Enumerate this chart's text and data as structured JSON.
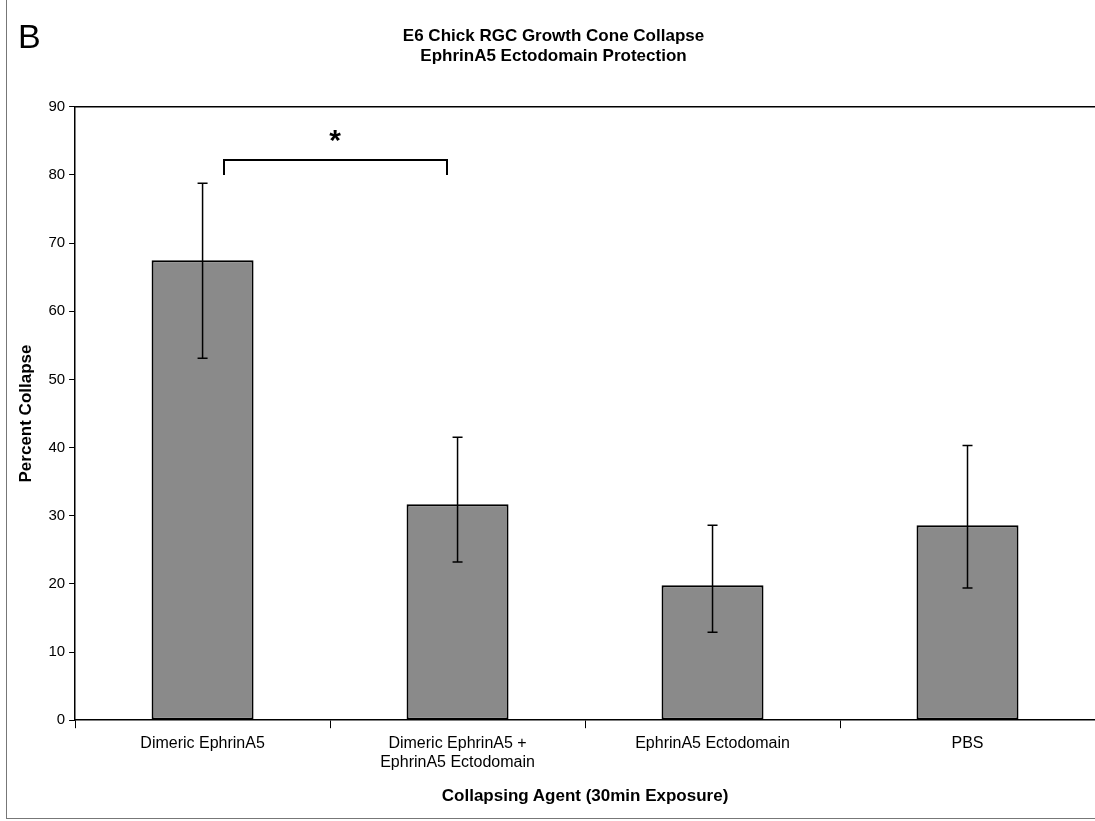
{
  "chart_data": {
    "type": "bar",
    "title": "E6 Chick RGC Growth Cone Collapse\nEphrinA5 Ectodomain Protection",
    "xlabel": "Collapsing Agent (30min Exposure)",
    "ylabel": "Percent Collapse",
    "categories": [
      "Dimeric EphrinA5",
      "Dimeric EphrinA5 + EphrinA5 Ectodomain",
      "EphrinA5 Ectodomain",
      "PBS"
    ],
    "values": [
      67.5,
      31.7,
      19.8,
      28.6
    ],
    "errors": [
      [
        53.1,
        78.8
      ],
      [
        23.2,
        41.5
      ],
      [
        12.9,
        28.6
      ],
      [
        19.4,
        40.3
      ]
    ],
    "color": "#8a8a8a",
    "ylim": [
      0,
      90
    ],
    "yticks": [
      0,
      10,
      20,
      30,
      40,
      50,
      60,
      70,
      80,
      90
    ],
    "grid": false,
    "legend": false,
    "annotations": [
      "B",
      "*"
    ]
  }
}
